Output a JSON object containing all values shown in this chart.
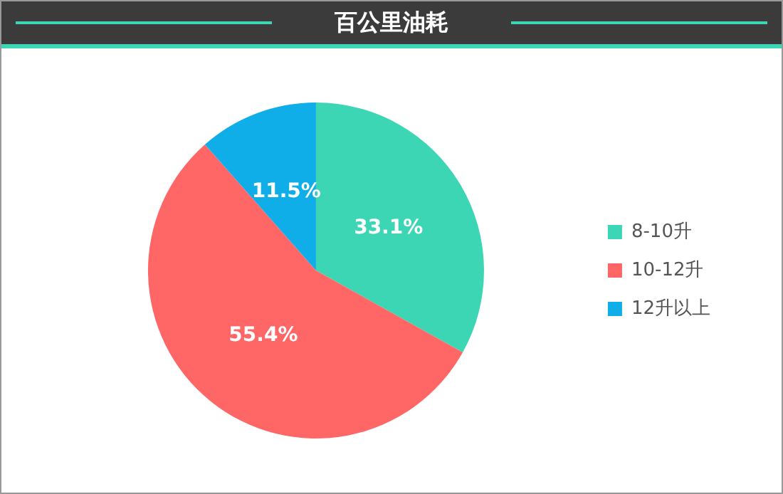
{
  "chart_data": {
    "type": "pie",
    "title": "百公里油耗",
    "categories": [
      "8-10升",
      "10-12升",
      "12升以上"
    ],
    "values": [
      33.1,
      55.4,
      11.5
    ],
    "colors": [
      "#3dd6b5",
      "#ff6666",
      "#10aee8"
    ],
    "value_labels": [
      "33.1%",
      "55.4%",
      "11.5%"
    ],
    "legend": "right"
  }
}
